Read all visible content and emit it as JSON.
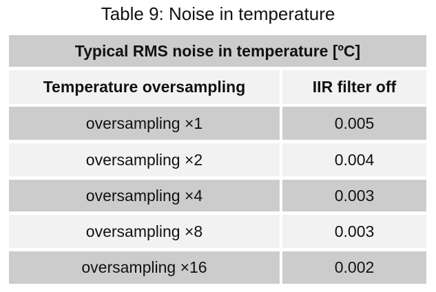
{
  "caption": "Table 9: Noise in temperature",
  "table": {
    "title": "Typical RMS noise in temperature [ºC]",
    "headers": [
      "Temperature oversampling",
      "IIR filter off"
    ],
    "rows": [
      [
        "oversampling ×1",
        "0.005"
      ],
      [
        "oversampling ×2",
        "0.004"
      ],
      [
        "oversampling ×4",
        "0.003"
      ],
      [
        "oversampling ×8",
        "0.003"
      ],
      [
        "oversampling ×16",
        "0.002"
      ]
    ]
  },
  "colors": {
    "dark_row": "#cccccc",
    "light_row": "#f2f2f2",
    "text": "#111111",
    "background": "#ffffff"
  }
}
